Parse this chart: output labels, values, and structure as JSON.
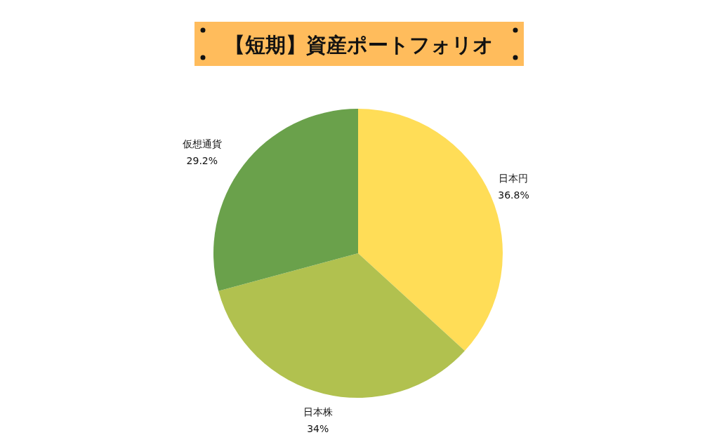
{
  "chart_data": {
    "type": "pie",
    "title": "【短期】資産ポートフォリオ",
    "categories": [
      "日本円",
      "日本株",
      "仮想通貨"
    ],
    "values": [
      36.8,
      34,
      29.2
    ],
    "value_labels": [
      "36.8%",
      "34%",
      "29.2%"
    ],
    "colors": [
      "#ffdd57",
      "#b1c14f",
      "#6aa14b"
    ]
  }
}
